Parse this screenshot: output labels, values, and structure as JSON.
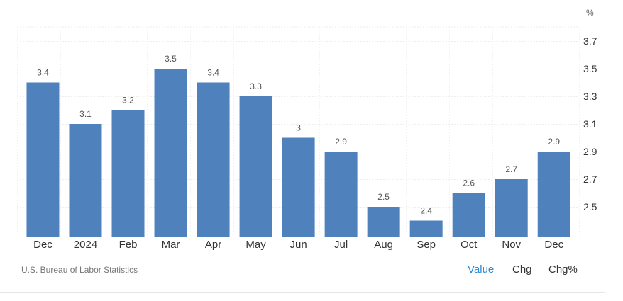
{
  "unit_label": "%",
  "source": "U.S. Bureau of Labor Statistics",
  "tabs": [
    {
      "label": "Value",
      "active": true
    },
    {
      "label": "Chg",
      "active": false
    },
    {
      "label": "Chg%",
      "active": false
    }
  ],
  "chart_data": {
    "type": "bar",
    "categories": [
      "Dec",
      "2024",
      "Feb",
      "Mar",
      "Apr",
      "May",
      "Jun",
      "Jul",
      "Aug",
      "Sep",
      "Oct",
      "Nov",
      "Dec"
    ],
    "values": [
      3.4,
      3.1,
      3.2,
      3.5,
      3.4,
      3.3,
      3,
      2.9,
      2.5,
      2.4,
      2.6,
      2.7,
      2.9
    ],
    "data_labels": [
      "3.4",
      "3.1",
      "3.2",
      "3.5",
      "3.4",
      "3.3",
      "3",
      "2.9",
      "2.5",
      "2.4",
      "2.6",
      "2.7",
      "2.9"
    ],
    "yticks": [
      2.5,
      2.7,
      2.9,
      3.1,
      3.3,
      3.5,
      3.7
    ],
    "ytick_labels": [
      "2.5",
      "2.7",
      "2.9",
      "3.1",
      "3.3",
      "3.5",
      "3.7"
    ],
    "ylim": [
      2.3,
      3.8
    ],
    "bar_color": "#4f81bd",
    "grid": true,
    "y_axis_side": "right"
  }
}
